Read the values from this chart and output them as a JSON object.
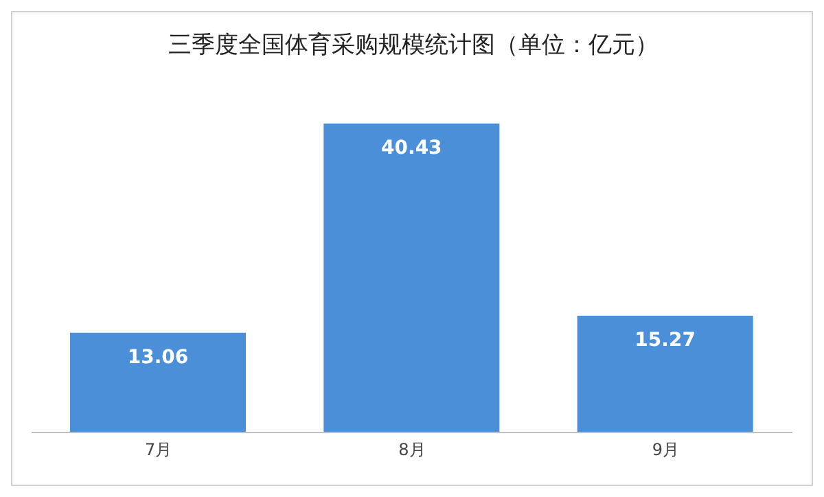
{
  "chart_data": {
    "type": "bar",
    "title": "三季度全国体育采购规模统计图（单位：亿元）",
    "categories": [
      "7月",
      "8月",
      "9月"
    ],
    "values": [
      13.06,
      40.43,
      15.27
    ],
    "color": "#4a8fd8",
    "data_labels": true
  }
}
